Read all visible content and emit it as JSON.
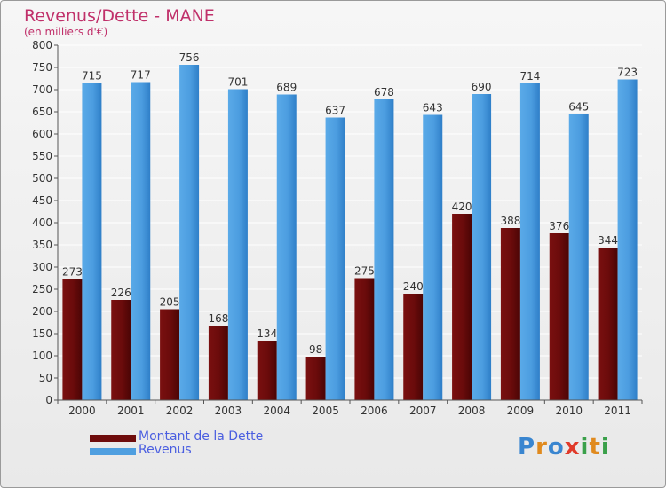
{
  "chart_data": {
    "type": "bar",
    "title": "Revenus/Dette - MANE",
    "subtitle": "(en milliers d'€)",
    "categories": [
      "2000",
      "2001",
      "2002",
      "2003",
      "2004",
      "2005",
      "2006",
      "2007",
      "2008",
      "2009",
      "2010",
      "2011"
    ],
    "series": [
      {
        "name": "Montant de la Dette",
        "color": "#6e0c0c",
        "values": [
          273,
          226,
          205,
          168,
          134,
          98,
          275,
          240,
          420,
          388,
          376,
          344
        ]
      },
      {
        "name": "Revenus",
        "color": "#4f9fe0",
        "values": [
          715,
          717,
          756,
          701,
          689,
          637,
          678,
          643,
          690,
          714,
          645,
          723
        ]
      }
    ],
    "ylim": [
      0,
      800
    ],
    "yticks": [
      0,
      50,
      100,
      150,
      200,
      250,
      300,
      350,
      400,
      450,
      500,
      550,
      600,
      650,
      700,
      750,
      800
    ],
    "grid": true,
    "legend_position": "bottom-left"
  },
  "logo": {
    "text": "Proxiti",
    "letters": [
      {
        "ch": "P",
        "color": "#3a86d0"
      },
      {
        "ch": "r",
        "color": "#e08a1e"
      },
      {
        "ch": "o",
        "color": "#3a86d0"
      },
      {
        "ch": "x",
        "color": "#e03a2a"
      },
      {
        "ch": "i",
        "color": "#3aa04a"
      },
      {
        "ch": "t",
        "color": "#e08a1e"
      },
      {
        "ch": "i",
        "color": "#3aa04a"
      }
    ]
  }
}
